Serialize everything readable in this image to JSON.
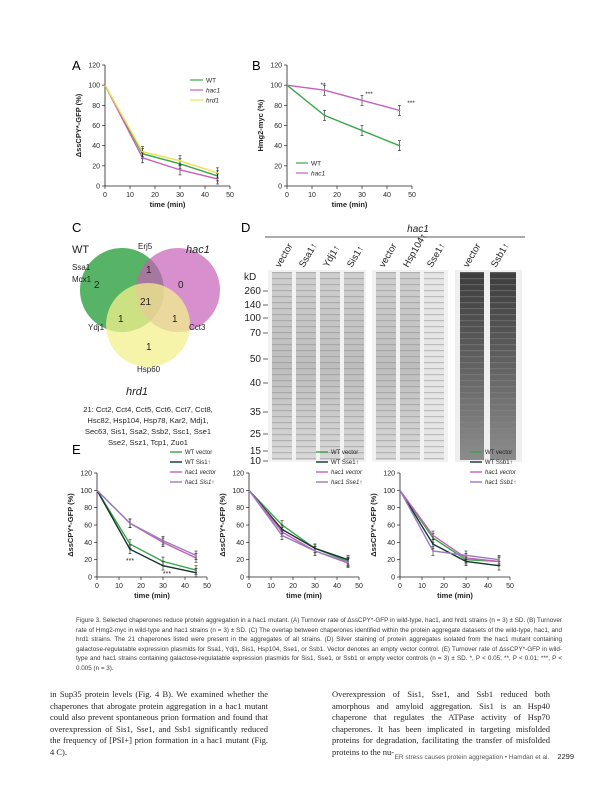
{
  "panels": {
    "A": {
      "letter": "A",
      "ylabel": "ΔssCPY*-GFP (%)",
      "xlabel": "time (min)",
      "legend": [
        "WT",
        "hac1",
        "hrd1"
      ]
    },
    "B": {
      "letter": "B",
      "ylabel": "Hmg2-myc (%)",
      "xlabel": "time (min)",
      "legend": [
        "WT",
        "hac1"
      ],
      "stars": [
        "**",
        "***",
        "***"
      ]
    },
    "C": {
      "letter": "C",
      "wt": "WT",
      "hac1": "hac1",
      "hrd1": "hrd1",
      "labels": {
        "erj5": "Erj5",
        "ssa1": "Ssa1",
        "mcx1": "Mcx1",
        "ydj1": "Ydj1",
        "cct3": "Cct3",
        "hsp60": "Hsp60"
      },
      "counts": {
        "wt_only": "2",
        "top_wt_hac1": "1",
        "hac1_only": "0",
        "center": "21",
        "wt_hrd1": "1",
        "hac1_hrd1": "1",
        "hrd1_only": "1"
      },
      "list": [
        "21: Cct2, Cct4, Cct5, Cct6, Cct7, Cct8,",
        "Hsc82, Hsp104, Hsp78, Kar2, Mdj1,",
        "Sec63, Sis1, Ssa2, Ssb2, Ssc1, Sse1",
        "Sse2, Ssz1, Tcp1, Zuo1"
      ]
    },
    "D": {
      "letter": "D",
      "title": "hac1",
      "kd_label": "kD",
      "markers": [
        "260",
        "140",
        "100",
        "70",
        "50",
        "40",
        "35",
        "25",
        "15",
        "10"
      ],
      "lanes1": [
        "vector",
        "Ssa1↑",
        "Ydj1↑",
        "Sis1↑"
      ],
      "lanes2": [
        "vector",
        "Hsp104↑",
        "Sse1↑"
      ],
      "lanes3": [
        "vector",
        "Ssb1↑"
      ]
    },
    "E": {
      "letter": "E",
      "ylabel": "ΔssCPY*-GFP (%)",
      "xlabel": "time (min)",
      "legend1": [
        "WT vector",
        "WT Sis1↑",
        "hac1 vector",
        "hac1 Sis1↑"
      ],
      "legend2": [
        "WT vector",
        "WT Sse1↑",
        "hac1 vector",
        "hac1 Sse1↑"
      ],
      "legend3": [
        "WT vector",
        "WT Ssb1↑",
        "hac1 vector",
        "hac1 Ssb1↑"
      ],
      "stars": [
        "***",
        "***"
      ]
    }
  },
  "chart_data": [
    {
      "type": "line",
      "panel": "A",
      "x": [
        0,
        15,
        30,
        45
      ],
      "xlim": [
        0,
        50
      ],
      "ylim": [
        0,
        120
      ],
      "xticks": [
        0,
        10,
        20,
        30,
        40,
        50
      ],
      "yticks": [
        0,
        20,
        40,
        60,
        80,
        100,
        120
      ],
      "series": [
        {
          "name": "WT",
          "values": [
            100,
            32,
            22,
            10
          ]
        },
        {
          "name": "hac1",
          "values": [
            100,
            28,
            16,
            7
          ]
        },
        {
          "name": "hrd1",
          "values": [
            100,
            34,
            25,
            13
          ]
        }
      ]
    },
    {
      "type": "line",
      "panel": "B",
      "x": [
        0,
        15,
        30,
        45
      ],
      "xlim": [
        0,
        50
      ],
      "ylim": [
        0,
        120
      ],
      "xticks": [
        0,
        10,
        20,
        30,
        40,
        50
      ],
      "yticks": [
        0,
        20,
        40,
        60,
        80,
        100,
        120
      ],
      "series": [
        {
          "name": "WT",
          "values": [
            100,
            70,
            55,
            40
          ]
        },
        {
          "name": "hac1",
          "values": [
            100,
            95,
            85,
            75
          ]
        }
      ]
    },
    {
      "type": "line",
      "panel": "E1",
      "x": [
        0,
        15,
        30,
        45
      ],
      "xlim": [
        0,
        50
      ],
      "ylim": [
        0,
        120
      ],
      "xticks": [
        0,
        10,
        20,
        30,
        40,
        50
      ],
      "yticks": [
        0,
        20,
        40,
        60,
        80,
        100,
        120
      ],
      "series": [
        {
          "name": "WT vector",
          "values": [
            100,
            38,
            18,
            8
          ]
        },
        {
          "name": "WT Sis1↑",
          "values": [
            100,
            32,
            13,
            5
          ]
        },
        {
          "name": "hac1 vector",
          "values": [
            100,
            62,
            40,
            22
          ]
        },
        {
          "name": "hac1 Sis1↑",
          "values": [
            100,
            62,
            42,
            25
          ]
        }
      ]
    },
    {
      "type": "line",
      "panel": "E2",
      "x": [
        0,
        15,
        30,
        45
      ],
      "xlim": [
        0,
        50
      ],
      "ylim": [
        0,
        120
      ],
      "xticks": [
        0,
        10,
        20,
        30,
        40,
        50
      ],
      "yticks": [
        0,
        20,
        40,
        60,
        80,
        100,
        120
      ],
      "series": [
        {
          "name": "WT vector",
          "values": [
            100,
            60,
            33,
            18
          ]
        },
        {
          "name": "WT Sse1↑",
          "values": [
            100,
            55,
            33,
            20
          ]
        },
        {
          "name": "hac1 vector",
          "values": [
            100,
            52,
            30,
            16
          ]
        },
        {
          "name": "hac1 Sse1↑",
          "values": [
            100,
            48,
            30,
            17
          ]
        }
      ]
    },
    {
      "type": "line",
      "panel": "E3",
      "x": [
        0,
        15,
        30,
        45
      ],
      "xlim": [
        0,
        50
      ],
      "ylim": [
        0,
        120
      ],
      "xticks": [
        0,
        10,
        20,
        30,
        40,
        50
      ],
      "yticks": [
        0,
        20,
        40,
        60,
        80,
        100,
        120
      ],
      "series": [
        {
          "name": "WT vector",
          "values": [
            100,
            45,
            20,
            18
          ]
        },
        {
          "name": "WT Ssb1↑",
          "values": [
            100,
            38,
            18,
            13
          ]
        },
        {
          "name": "hac1 vector",
          "values": [
            100,
            48,
            22,
            18
          ]
        },
        {
          "name": "hac1 Ssb1↑",
          "values": [
            100,
            30,
            25,
            20
          ]
        }
      ]
    }
  ],
  "caption": "Figure 3.   Selected chaperones reduce protein aggregation in a hac1 mutant. (A) Turnover rate of ΔssCPY*-GFP in wild-type, hac1, and hrd1 strains (n = 3) ± SD. (B) Turnover rate of Hmg2-myc in wild-type and hac1 strains (n = 3) ± SD. (C) The overlap between chaperones identified within the protein aggregate datasets of the wild-type, hac1, and hrd1 strains. The 21 chaperones listed were present in the aggregates of all strains. (D) Silver staining of protein aggregates isolated from the hac1 mutant containing galactose-regulatable expression plasmids for Ssa1, Ydj1, Sis1, Hsp104, Sse1, or Ssb1. Vector denotes an empty vector control. (E) Turnover rate of ΔssCPY*-GFP in wild-type and hac1 strains containing galactose-regulatable expression plasmids for Sis1, Sse1, or Ssb1 or empty vector controls (n = 3) ± SD. *, P < 0.05; **, P < 0.01; ***, P < 0.005 (n = 3).",
  "body_left": "in Sup35 protein levels (Fig. 4 B). We examined whether the chaperones that abrogate protein aggregation in a hac1 mutant could also prevent spontaneous prion formation and found that overexpression of Sis1, Sse1, and Ssb1 significantly reduced the frequency of [PSI+] prion formation in a hac1 mutant (Fig. 4 C).",
  "body_right": "Overexpression of Sis1, Sse1, and Ssb1 reduced both amorphous and amyloid aggregation. Sis1 is an Hsp40 chaperone that regulates the ATPase activity of Hsp70 chaperones. It has been implicated in targeting misfolded proteins for degradation, facilitating the transfer of misfolded proteins to the nu-",
  "footer": {
    "running_title": "ER stress causes protein aggregation • Hamdan et al.",
    "page": "2299"
  },
  "colors": {
    "wt": "#3aa64a",
    "hac1": "#c85fb9",
    "hrd1": "#e6e44c",
    "wt_dark": "#14352e",
    "hac1_light": "#9a7bc0"
  }
}
